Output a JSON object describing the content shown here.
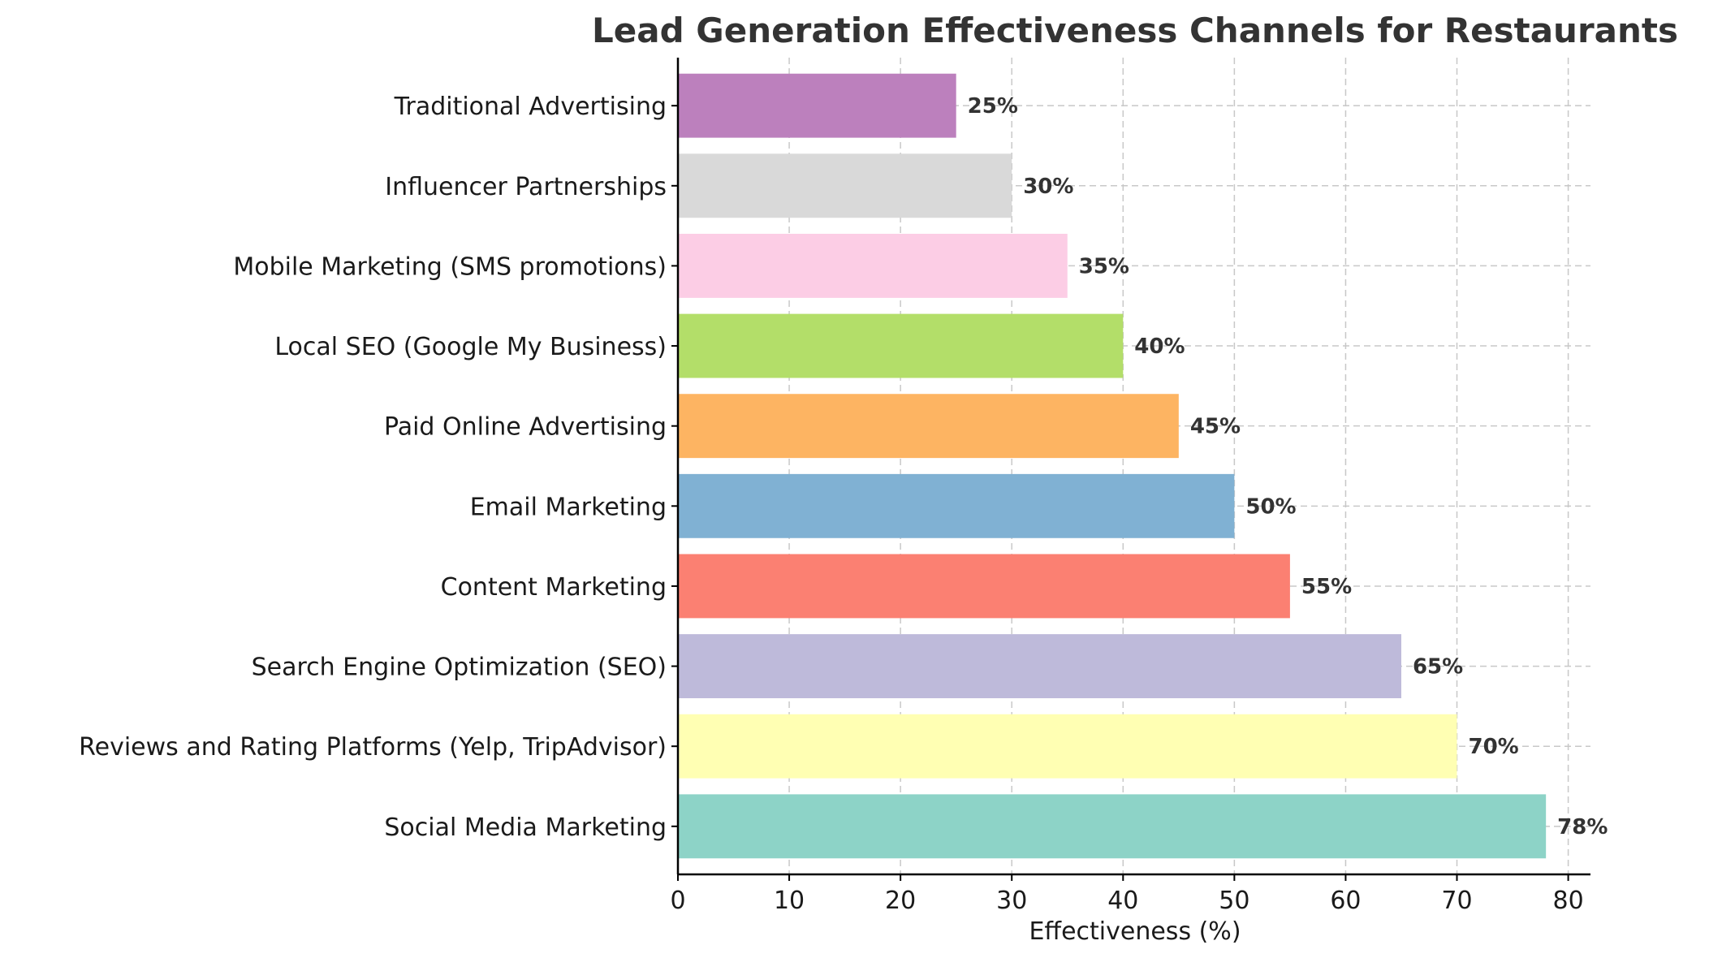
{
  "chart_data": {
    "type": "bar",
    "orientation": "horizontal",
    "title": "Lead Generation Effectiveness Channels for Restaurants",
    "xlabel": "Effectiveness (%)",
    "ylabel": "",
    "xlim": [
      0,
      82
    ],
    "xticks": [
      0,
      10,
      20,
      30,
      40,
      50,
      60,
      70,
      80
    ],
    "grid": true,
    "categories": [
      "Social Media Marketing",
      "Reviews and Rating Platforms (Yelp, TripAdvisor)",
      "Search Engine Optimization (SEO)",
      "Content Marketing",
      "Email Marketing",
      "Paid Online Advertising",
      "Local SEO (Google My Business)",
      "Mobile Marketing (SMS promotions)",
      "Influencer Partnerships",
      "Traditional Advertising"
    ],
    "values": [
      78,
      70,
      65,
      55,
      50,
      45,
      40,
      35,
      30,
      25
    ],
    "data_labels": [
      "78%",
      "70%",
      "65%",
      "55%",
      "50%",
      "45%",
      "40%",
      "35%",
      "30%",
      "25%"
    ],
    "colors": [
      "#8dd3c7",
      "#ffffb3",
      "#bebada",
      "#fb8072",
      "#80b1d3",
      "#fdb462",
      "#b3de69",
      "#fccde5",
      "#d9d9d9",
      "#bc80bd"
    ]
  }
}
